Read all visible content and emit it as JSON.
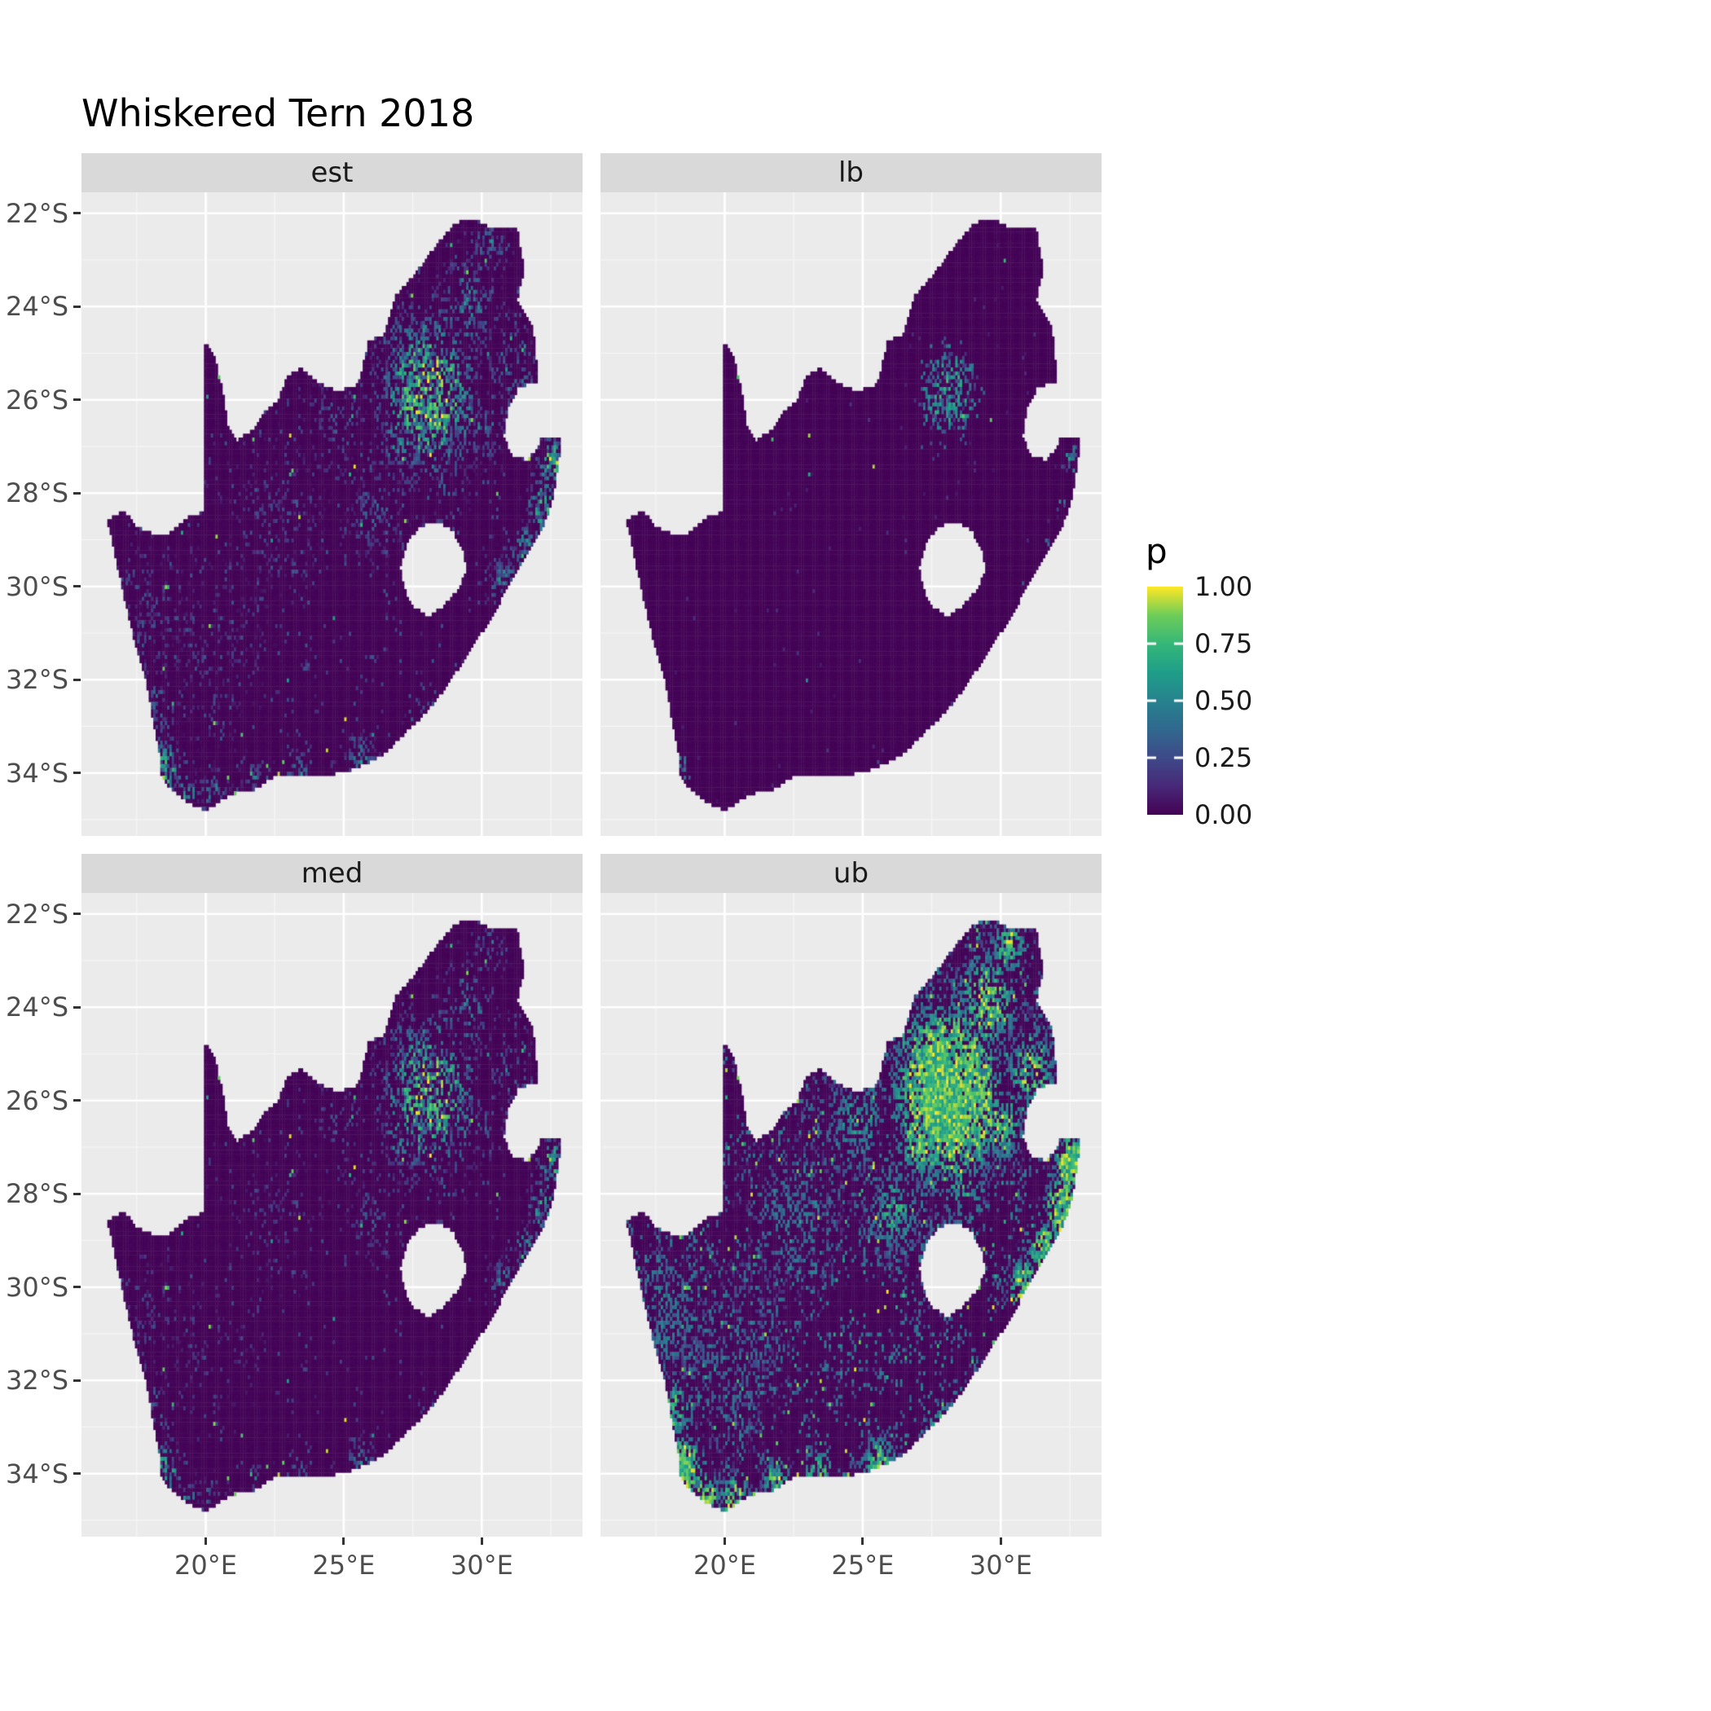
{
  "title": "Whiskered Tern 2018",
  "facets": [
    {
      "key": "est",
      "label": "est"
    },
    {
      "key": "lb",
      "label": "lb"
    },
    {
      "key": "med",
      "label": "med"
    },
    {
      "key": "ub",
      "label": "ub"
    }
  ],
  "legend": {
    "title": "p",
    "ticks": [
      {
        "label": "1.00",
        "value": 1.0
      },
      {
        "label": "0.75",
        "value": 0.75
      },
      {
        "label": "0.50",
        "value": 0.5
      },
      {
        "label": "0.25",
        "value": 0.25
      },
      {
        "label": "0.00",
        "value": 0.0
      }
    ]
  },
  "axes": {
    "x": {
      "ticks": [
        {
          "label": "20°E",
          "value": 20
        },
        {
          "label": "25°E",
          "value": 25
        },
        {
          "label": "30°E",
          "value": 30
        }
      ],
      "minor": [
        17.5,
        22.5,
        27.5,
        32.5
      ]
    },
    "y": {
      "ticks": [
        {
          "label": "22°S",
          "value": -22
        },
        {
          "label": "24°S",
          "value": -24
        },
        {
          "label": "26°S",
          "value": -26
        },
        {
          "label": "28°S",
          "value": -28
        },
        {
          "label": "30°S",
          "value": -30
        },
        {
          "label": "32°S",
          "value": -32
        },
        {
          "label": "34°S",
          "value": -34
        }
      ],
      "minor": [
        -23,
        -25,
        -27,
        -29,
        -31,
        -33,
        -35
      ]
    }
  },
  "theme": {
    "panel_bg": "#EBEBEB",
    "grid_major": "#FFFFFF",
    "grid_minor": "#F7F7F7",
    "strip_bg": "#D9D9D9",
    "strip_text": "#1A1A1A",
    "axis_text": "#4D4D4D",
    "tick_mark": "#333333"
  },
  "chart_data": {
    "type": "heatmap",
    "title": "Whiskered Tern 2018",
    "region": "South Africa",
    "fill_variable": "p",
    "fill_scale": {
      "name": "viridis",
      "domain": [
        0,
        1
      ],
      "stops": [
        {
          "p": 0.0,
          "color": "#440154"
        },
        {
          "p": 0.125,
          "color": "#482878"
        },
        {
          "p": 0.25,
          "color": "#3E4A89"
        },
        {
          "p": 0.375,
          "color": "#31688E"
        },
        {
          "p": 0.5,
          "color": "#26828E"
        },
        {
          "p": 0.625,
          "color": "#1F9E89"
        },
        {
          "p": 0.75,
          "color": "#35B779"
        },
        {
          "p": 0.875,
          "color": "#6DCD59"
        },
        {
          "p": 1.0,
          "color": "#FDE725"
        }
      ]
    },
    "facets": [
      "est",
      "lb",
      "med",
      "ub"
    ],
    "x_range": [
      15.5,
      33.65
    ],
    "y_range": [
      -35.35,
      -21.55
    ],
    "cell_size_deg": 0.08333,
    "boundary": {
      "outer": [
        [
          16.45,
          -28.6
        ],
        [
          17.05,
          -28.35
        ],
        [
          17.45,
          -28.7
        ],
        [
          18.1,
          -28.87
        ],
        [
          18.75,
          -28.85
        ],
        [
          19.4,
          -28.5
        ],
        [
          19.98,
          -28.4
        ],
        [
          19.98,
          -24.77
        ],
        [
          20.35,
          -25.1
        ],
        [
          20.6,
          -25.75
        ],
        [
          20.82,
          -26.55
        ],
        [
          21.15,
          -26.86
        ],
        [
          21.7,
          -26.65
        ],
        [
          22.15,
          -26.25
        ],
        [
          22.65,
          -26.0
        ],
        [
          22.9,
          -25.55
        ],
        [
          23.45,
          -25.3
        ],
        [
          24.05,
          -25.62
        ],
        [
          24.75,
          -25.8
        ],
        [
          25.45,
          -25.72
        ],
        [
          25.6,
          -25.48
        ],
        [
          25.9,
          -24.73
        ],
        [
          26.45,
          -24.62
        ],
        [
          26.85,
          -23.8
        ],
        [
          27.45,
          -23.4
        ],
        [
          28.2,
          -22.8
        ],
        [
          29.05,
          -22.2
        ],
        [
          29.7,
          -22.12
        ],
        [
          30.3,
          -22.3
        ],
        [
          31.3,
          -22.35
        ],
        [
          31.55,
          -23.2
        ],
        [
          31.3,
          -23.85
        ],
        [
          31.85,
          -24.4
        ],
        [
          31.98,
          -25.15
        ],
        [
          32.02,
          -25.62
        ],
        [
          31.35,
          -25.72
        ],
        [
          30.95,
          -26.2
        ],
        [
          30.8,
          -26.8
        ],
        [
          31.1,
          -27.2
        ],
        [
          31.65,
          -27.3
        ],
        [
          31.97,
          -27.08
        ],
        [
          32.13,
          -26.85
        ],
        [
          32.9,
          -26.85
        ],
        [
          32.58,
          -28.15
        ],
        [
          32.22,
          -28.75
        ],
        [
          31.75,
          -29.25
        ],
        [
          31.05,
          -29.9
        ],
        [
          30.4,
          -30.65
        ],
        [
          29.55,
          -31.4
        ],
        [
          28.8,
          -32.1
        ],
        [
          28.0,
          -32.7
        ],
        [
          27.15,
          -33.2
        ],
        [
          26.45,
          -33.6
        ],
        [
          25.65,
          -33.85
        ],
        [
          24.95,
          -34.0
        ],
        [
          24.2,
          -34.05
        ],
        [
          23.4,
          -34.1
        ],
        [
          22.55,
          -34.05
        ],
        [
          21.8,
          -34.35
        ],
        [
          20.95,
          -34.45
        ],
        [
          20.0,
          -34.82
        ],
        [
          19.3,
          -34.62
        ],
        [
          18.85,
          -34.38
        ],
        [
          18.42,
          -34.15
        ],
        [
          18.3,
          -33.5
        ],
        [
          18.05,
          -32.75
        ],
        [
          17.85,
          -32.05
        ],
        [
          17.4,
          -31.15
        ],
        [
          17.05,
          -30.25
        ],
        [
          16.72,
          -29.35
        ]
      ],
      "hole_lesotho": [
        [
          27.05,
          -29.6
        ],
        [
          27.35,
          -29.0
        ],
        [
          27.78,
          -28.72
        ],
        [
          28.38,
          -28.6
        ],
        [
          28.92,
          -28.78
        ],
        [
          29.35,
          -29.25
        ],
        [
          29.45,
          -29.68
        ],
        [
          29.12,
          -30.08
        ],
        [
          28.62,
          -30.42
        ],
        [
          28.05,
          -30.66
        ],
        [
          27.48,
          -30.4
        ],
        [
          27.18,
          -30.03
        ]
      ]
    },
    "hotspots": [
      {
        "x": 28.1,
        "y": -25.9,
        "s": 1.15,
        "a": 1.0
      },
      {
        "x": 27.1,
        "y": -26.9,
        "s": 0.55,
        "a": 0.55
      },
      {
        "x": 29.5,
        "y": -23.9,
        "s": 0.75,
        "a": 0.5
      },
      {
        "x": 31.1,
        "y": -25.4,
        "s": 0.6,
        "a": 0.5
      },
      {
        "x": 30.3,
        "y": -22.7,
        "s": 0.45,
        "a": 0.45
      },
      {
        "x": 26.2,
        "y": -28.4,
        "s": 0.7,
        "a": 0.35
      },
      {
        "x": 28.6,
        "y": -27.9,
        "s": 0.6,
        "a": 0.35
      },
      {
        "x": 24.8,
        "y": -26.5,
        "s": 0.8,
        "a": 0.3
      },
      {
        "x": 22.5,
        "y": -28.5,
        "s": 1.2,
        "a": 0.22
      },
      {
        "x": 20.0,
        "y": -31.5,
        "s": 1.5,
        "a": 0.18
      },
      {
        "x": 17.8,
        "y": -30.5,
        "s": 1.0,
        "a": 0.25
      },
      {
        "x": 18.45,
        "y": -33.95,
        "s": 0.45,
        "a": 0.85
      },
      {
        "x": 19.3,
        "y": -34.5,
        "s": 0.35,
        "a": 0.6
      },
      {
        "x": 20.4,
        "y": -34.6,
        "s": 0.4,
        "a": 0.55
      },
      {
        "x": 21.9,
        "y": -34.2,
        "s": 0.35,
        "a": 0.5
      },
      {
        "x": 23.4,
        "y": -34.0,
        "s": 0.35,
        "a": 0.55
      },
      {
        "x": 25.6,
        "y": -33.85,
        "s": 0.4,
        "a": 0.6
      },
      {
        "x": 27.9,
        "y": -33.0,
        "s": 0.35,
        "a": 0.55
      },
      {
        "x": 30.9,
        "y": -30.0,
        "s": 0.4,
        "a": 0.65
      },
      {
        "x": 31.6,
        "y": -29.2,
        "s": 0.4,
        "a": 0.6
      },
      {
        "x": 32.3,
        "y": -28.3,
        "s": 0.45,
        "a": 0.75
      },
      {
        "x": 32.6,
        "y": -27.3,
        "s": 0.4,
        "a": 0.85
      },
      {
        "x": 30.0,
        "y": -26.5,
        "s": 0.6,
        "a": 0.45
      },
      {
        "x": 29.0,
        "y": -26.7,
        "s": 0.5,
        "a": 0.5
      },
      {
        "x": 26.9,
        "y": -24.9,
        "s": 0.6,
        "a": 0.4
      },
      {
        "x": 18.2,
        "y": -32.6,
        "s": 0.5,
        "a": 0.4
      }
    ],
    "facet_params": {
      "est": {
        "base": 0.01,
        "gate": 0.5,
        "gate_patch": 0.3,
        "gate_off": 0.0,
        "hamp": 1.25,
        "hi0": 0.3,
        "hi1": 0.7,
        "low_gate": 0.3,
        "low_bg": 0.1,
        "low_patch": 0.25,
        "low0": 0.08,
        "low1": 0.22,
        "spike_thr": 0.9965,
        "spike0": 0.5,
        "spike1": 0.5
      },
      "lb": {
        "base": 0.008,
        "gate": 1.1,
        "gate_patch": 0.2,
        "gate_off": 0.5,
        "hamp": 1.0,
        "hi0": 0.2,
        "hi1": 0.6,
        "low_gate": 0.03,
        "low_bg": 0.03,
        "low_patch": 0.05,
        "low0": 0.05,
        "low1": 0.12,
        "spike_thr": 0.9995,
        "spike0": 0.45,
        "spike1": 0.5
      },
      "med": {
        "base": 0.01,
        "gate": 0.44,
        "gate_patch": 0.25,
        "gate_off": 0.05,
        "hamp": 1.15,
        "hi0": 0.28,
        "hi1": 0.72,
        "low_gate": 0.2,
        "low_bg": 0.07,
        "low_patch": 0.2,
        "low0": 0.07,
        "low1": 0.2,
        "spike_thr": 0.997,
        "spike0": 0.5,
        "spike1": 0.5
      },
      "ub": {
        "base": 0.015,
        "gate": 0.95,
        "gate_patch": 0.5,
        "gate_off": 0.0,
        "hamp": 2.4,
        "hi0": 0.55,
        "hi1": 0.45,
        "low_gate": 0.55,
        "low_bg": 0.22,
        "low_patch": 0.55,
        "low0": 0.2,
        "low1": 0.32,
        "spike_thr": 0.986,
        "spike0": 0.6,
        "spike1": 0.4
      }
    }
  }
}
